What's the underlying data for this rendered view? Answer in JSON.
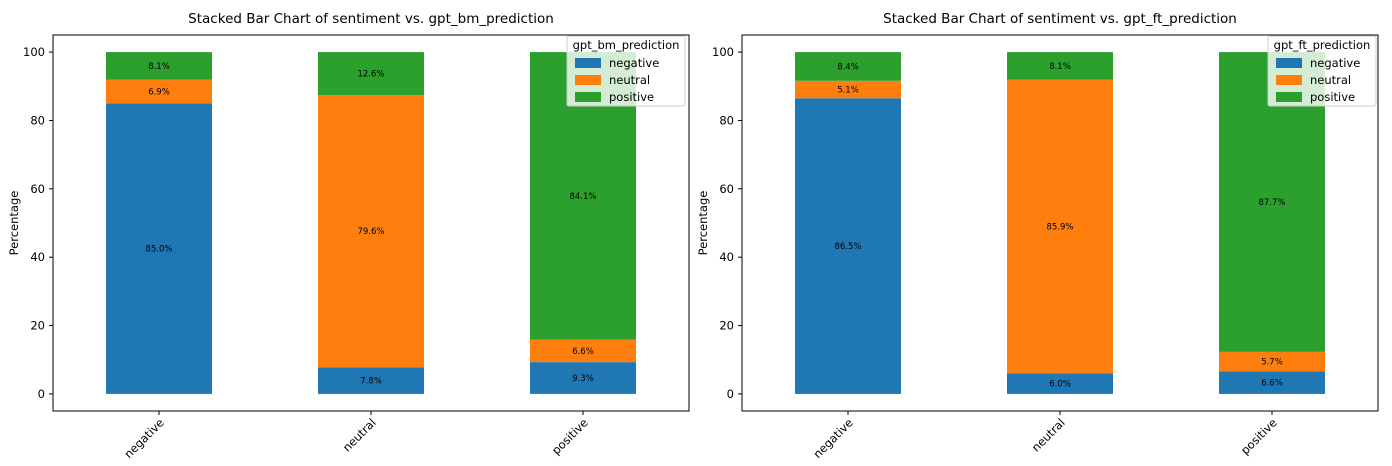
{
  "chart_data": [
    {
      "type": "bar",
      "stacked": true,
      "title": "Stacked Bar Chart of sentiment vs. gpt_bm_prediction",
      "xlabel": "",
      "ylabel": "Percentage",
      "ylim": [
        0,
        100
      ],
      "yticks": [
        "0",
        "20",
        "40",
        "60",
        "80",
        "100"
      ],
      "categories": [
        "negative",
        "neutral",
        "positive"
      ],
      "legend_title": "gpt_bm_prediction",
      "legend_position": "top-right",
      "series": [
        {
          "name": "negative",
          "color": "#1f77b4",
          "values": [
            85.0,
            7.8,
            9.3
          ],
          "labels": [
            "85.0%",
            "7.8%",
            "9.3%"
          ]
        },
        {
          "name": "neutral",
          "color": "#ff7f0e",
          "values": [
            6.9,
            79.6,
            6.6
          ],
          "labels": [
            "6.9%",
            "79.6%",
            "6.6%"
          ]
        },
        {
          "name": "positive",
          "color": "#2ca02c",
          "values": [
            8.1,
            12.6,
            84.1
          ],
          "labels": [
            "8.1%",
            "12.6%",
            "84.1%"
          ]
        }
      ]
    },
    {
      "type": "bar",
      "stacked": true,
      "title": "Stacked Bar Chart of sentiment vs. gpt_ft_prediction",
      "xlabel": "",
      "ylabel": "Percentage",
      "ylim": [
        0,
        100
      ],
      "yticks": [
        "0",
        "20",
        "40",
        "60",
        "80",
        "100"
      ],
      "categories": [
        "negative",
        "neutral",
        "positive"
      ],
      "legend_title": "gpt_ft_prediction",
      "legend_position": "top-right",
      "series": [
        {
          "name": "negative",
          "color": "#1f77b4",
          "values": [
            86.5,
            6.0,
            6.6
          ],
          "labels": [
            "86.5%",
            "6.0%",
            "6.6%"
          ]
        },
        {
          "name": "neutral",
          "color": "#ff7f0e",
          "values": [
            5.1,
            85.9,
            5.7
          ],
          "labels": [
            "5.1%",
            "85.9%",
            "5.7%"
          ]
        },
        {
          "name": "positive",
          "color": "#2ca02c",
          "values": [
            8.4,
            8.1,
            87.7
          ],
          "labels": [
            "8.4%",
            "8.1%",
            "87.7%"
          ]
        }
      ]
    }
  ]
}
